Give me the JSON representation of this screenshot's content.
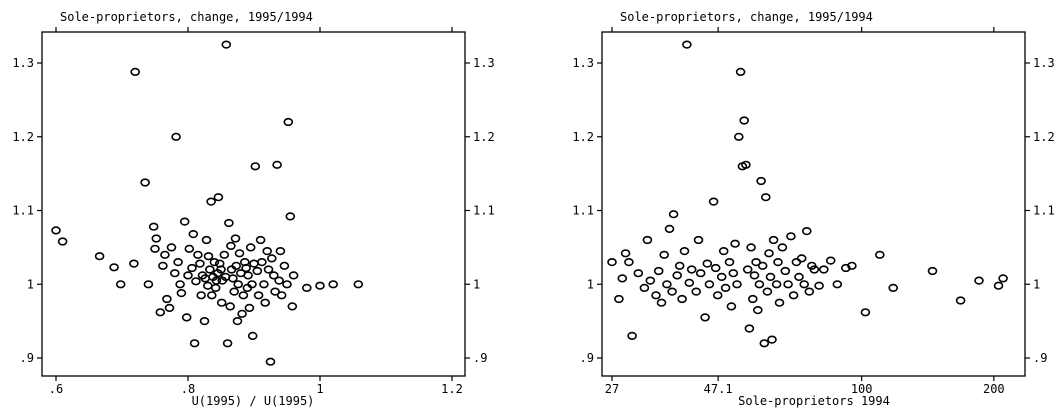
{
  "chart_data": [
    {
      "type": "scatter",
      "title": "Sole-proprietors, change, 1995/1994",
      "xlabel": "U(1995) / U(1995)",
      "ylabel": "",
      "xlim": [
        0.6,
        1.2
      ],
      "ylim": [
        0.9,
        1.33
      ],
      "x_scale": "linear",
      "x_ticks": [
        0.6,
        0.8,
        1.0,
        1.2
      ],
      "x_tick_labels": [
        ".6",
        ".8",
        "1",
        "1.2"
      ],
      "y_ticks": [
        0.9,
        1.0,
        1.1,
        1.2,
        1.3
      ],
      "y_tick_labels": [
        ".9",
        "1",
        "1.1",
        "1.2",
        "1.3"
      ],
      "grid": false,
      "points": [
        [
          0.6,
          1.073
        ],
        [
          0.61,
          1.058
        ],
        [
          0.666,
          1.038
        ],
        [
          0.688,
          1.023
        ],
        [
          0.698,
          1.0
        ],
        [
          0.718,
          1.028
        ],
        [
          0.72,
          1.288
        ],
        [
          0.735,
          1.138
        ],
        [
          0.74,
          1.0
        ],
        [
          0.748,
          1.078
        ],
        [
          0.75,
          1.048
        ],
        [
          0.752,
          1.062
        ],
        [
          0.758,
          0.962
        ],
        [
          0.762,
          1.025
        ],
        [
          0.765,
          1.04
        ],
        [
          0.768,
          0.98
        ],
        [
          0.772,
          0.968
        ],
        [
          0.775,
          1.05
        ],
        [
          0.78,
          1.015
        ],
        [
          0.782,
          1.2
        ],
        [
          0.785,
          1.03
        ],
        [
          0.788,
          1.0
        ],
        [
          0.79,
          0.988
        ],
        [
          0.795,
          1.085
        ],
        [
          0.798,
          0.955
        ],
        [
          0.8,
          1.012
        ],
        [
          0.802,
          1.048
        ],
        [
          0.806,
          1.022
        ],
        [
          0.808,
          1.068
        ],
        [
          0.81,
          0.92
        ],
        [
          0.812,
          1.004
        ],
        [
          0.815,
          1.04
        ],
        [
          0.818,
          1.028
        ],
        [
          0.82,
          0.985
        ],
        [
          0.822,
          1.012
        ],
        [
          0.825,
          0.95
        ],
        [
          0.826,
          1.008
        ],
        [
          0.828,
          1.06
        ],
        [
          0.83,
          0.998
        ],
        [
          0.831,
          1.038
        ],
        [
          0.833,
          1.02
        ],
        [
          0.835,
          1.112
        ],
        [
          0.836,
          0.985
        ],
        [
          0.838,
          1.01
        ],
        [
          0.84,
          1.03
        ],
        [
          0.842,
          0.995
        ],
        [
          0.843,
          1.005
        ],
        [
          0.845,
          1.015
        ],
        [
          0.846,
          1.118
        ],
        [
          0.848,
          1.028
        ],
        [
          0.85,
          1.02
        ],
        [
          0.851,
          0.975
        ],
        [
          0.852,
          1.005
        ],
        [
          0.855,
          1.04
        ],
        [
          0.857,
          1.01
        ],
        [
          0.858,
          1.325
        ],
        [
          0.86,
          0.92
        ],
        [
          0.862,
          1.083
        ],
        [
          0.864,
          0.97
        ],
        [
          0.865,
          1.052
        ],
        [
          0.866,
          1.02
        ],
        [
          0.868,
          1.008
        ],
        [
          0.87,
          0.99
        ],
        [
          0.872,
          1.062
        ],
        [
          0.873,
          1.025
        ],
        [
          0.875,
          0.95
        ],
        [
          0.876,
          1.0
        ],
        [
          0.878,
          1.042
        ],
        [
          0.88,
          1.015
        ],
        [
          0.882,
          0.96
        ],
        [
          0.884,
          0.985
        ],
        [
          0.886,
          1.03
        ],
        [
          0.888,
          1.022
        ],
        [
          0.89,
          0.995
        ],
        [
          0.891,
          1.012
        ],
        [
          0.893,
          0.968
        ],
        [
          0.895,
          1.05
        ],
        [
          0.897,
          1.0
        ],
        [
          0.898,
          0.93
        ],
        [
          0.9,
          1.028
        ],
        [
          0.902,
          1.16
        ],
        [
          0.905,
          1.018
        ],
        [
          0.907,
          0.985
        ],
        [
          0.91,
          1.06
        ],
        [
          0.912,
          1.03
        ],
        [
          0.915,
          1.0
        ],
        [
          0.917,
          0.975
        ],
        [
          0.92,
          1.045
        ],
        [
          0.922,
          1.02
        ],
        [
          0.925,
          0.895
        ],
        [
          0.927,
          1.035
        ],
        [
          0.93,
          1.012
        ],
        [
          0.932,
          0.99
        ],
        [
          0.935,
          1.162
        ],
        [
          0.938,
          1.005
        ],
        [
          0.94,
          1.045
        ],
        [
          0.942,
          0.985
        ],
        [
          0.946,
          1.025
        ],
        [
          0.95,
          1.0
        ],
        [
          0.952,
          1.22
        ],
        [
          0.955,
          1.092
        ],
        [
          0.958,
          0.97
        ],
        [
          0.96,
          1.012
        ],
        [
          0.98,
          0.995
        ],
        [
          1.0,
          0.998
        ],
        [
          1.02,
          1.0
        ],
        [
          1.058,
          1.0
        ]
      ]
    },
    {
      "type": "scatter",
      "title": "Sole-proprietors, change, 1995/1994",
      "xlabel": "Sole-proprietors 1994",
      "ylabel": "",
      "x_scale": "log",
      "xlim": [
        27,
        220
      ],
      "ylim": [
        0.9,
        1.33
      ],
      "x_ticks": [
        27,
        47.1,
        100,
        200
      ],
      "x_tick_labels": [
        "27",
        "47.1",
        "100",
        "200"
      ],
      "y_ticks": [
        0.9,
        1.0,
        1.1,
        1.2,
        1.3
      ],
      "y_tick_labels": [
        ".9",
        "1",
        "1.1",
        "1.2",
        "1.3"
      ],
      "grid": false,
      "points": [
        [
          27,
          1.03
        ],
        [
          28,
          0.98
        ],
        [
          28.5,
          1.008
        ],
        [
          29,
          1.042
        ],
        [
          29.5,
          1.03
        ],
        [
          30,
          0.93
        ],
        [
          31,
          1.015
        ],
        [
          32,
          0.995
        ],
        [
          32.5,
          1.06
        ],
        [
          33,
          1.005
        ],
        [
          34,
          0.985
        ],
        [
          34.5,
          1.018
        ],
        [
          35,
          0.975
        ],
        [
          35.5,
          1.04
        ],
        [
          36,
          1.0
        ],
        [
          36.5,
          1.075
        ],
        [
          37,
          0.99
        ],
        [
          37.3,
          1.095
        ],
        [
          38,
          1.012
        ],
        [
          38.5,
          1.025
        ],
        [
          39,
          0.98
        ],
        [
          39.5,
          1.045
        ],
        [
          40,
          1.325
        ],
        [
          40.5,
          1.002
        ],
        [
          41,
          1.02
        ],
        [
          42,
          0.99
        ],
        [
          42.5,
          1.06
        ],
        [
          43,
          1.015
        ],
        [
          44,
          0.955
        ],
        [
          44.5,
          1.028
        ],
        [
          45,
          1.0
        ],
        [
          46,
          1.112
        ],
        [
          46.5,
          1.022
        ],
        [
          47,
          0.985
        ],
        [
          48,
          1.01
        ],
        [
          48.5,
          1.045
        ],
        [
          49,
          0.995
        ],
        [
          50,
          1.03
        ],
        [
          50.5,
          0.97
        ],
        [
          51,
          1.015
        ],
        [
          51.5,
          1.055
        ],
        [
          52,
          1.0
        ],
        [
          52.5,
          1.2
        ],
        [
          53,
          1.288
        ],
        [
          53.5,
          1.16
        ],
        [
          54,
          1.222
        ],
        [
          54.5,
          1.162
        ],
        [
          55,
          1.02
        ],
        [
          55.5,
          0.94
        ],
        [
          56,
          1.05
        ],
        [
          56.5,
          0.98
        ],
        [
          57,
          1.012
        ],
        [
          57.5,
          1.03
        ],
        [
          58,
          0.965
        ],
        [
          58.5,
          1.0
        ],
        [
          59,
          1.14
        ],
        [
          59.5,
          1.025
        ],
        [
          60,
          0.92
        ],
        [
          60.5,
          1.118
        ],
        [
          61,
          0.99
        ],
        [
          61.5,
          1.042
        ],
        [
          62,
          1.01
        ],
        [
          62.5,
          0.925
        ],
        [
          63,
          1.06
        ],
        [
          64,
          1.0
        ],
        [
          64.5,
          1.03
        ],
        [
          65,
          0.975
        ],
        [
          66,
          1.05
        ],
        [
          67,
          1.018
        ],
        [
          68,
          1.0
        ],
        [
          69,
          1.065
        ],
        [
          70,
          0.985
        ],
        [
          71,
          1.03
        ],
        [
          72,
          1.01
        ],
        [
          73,
          1.035
        ],
        [
          74,
          1.0
        ],
        [
          75,
          1.072
        ],
        [
          76,
          0.99
        ],
        [
          77,
          1.025
        ],
        [
          78,
          1.02
        ],
        [
          80,
          0.998
        ],
        [
          82,
          1.02
        ],
        [
          85,
          1.032
        ],
        [
          88,
          1.0
        ],
        [
          92,
          1.022
        ],
        [
          95,
          1.025
        ],
        [
          102,
          0.962
        ],
        [
          110,
          1.04
        ],
        [
          118,
          0.995
        ],
        [
          145,
          1.018
        ],
        [
          168,
          0.978
        ],
        [
          185,
          1.005
        ],
        [
          205,
          0.998
        ],
        [
          210,
          1.008
        ]
      ]
    }
  ]
}
